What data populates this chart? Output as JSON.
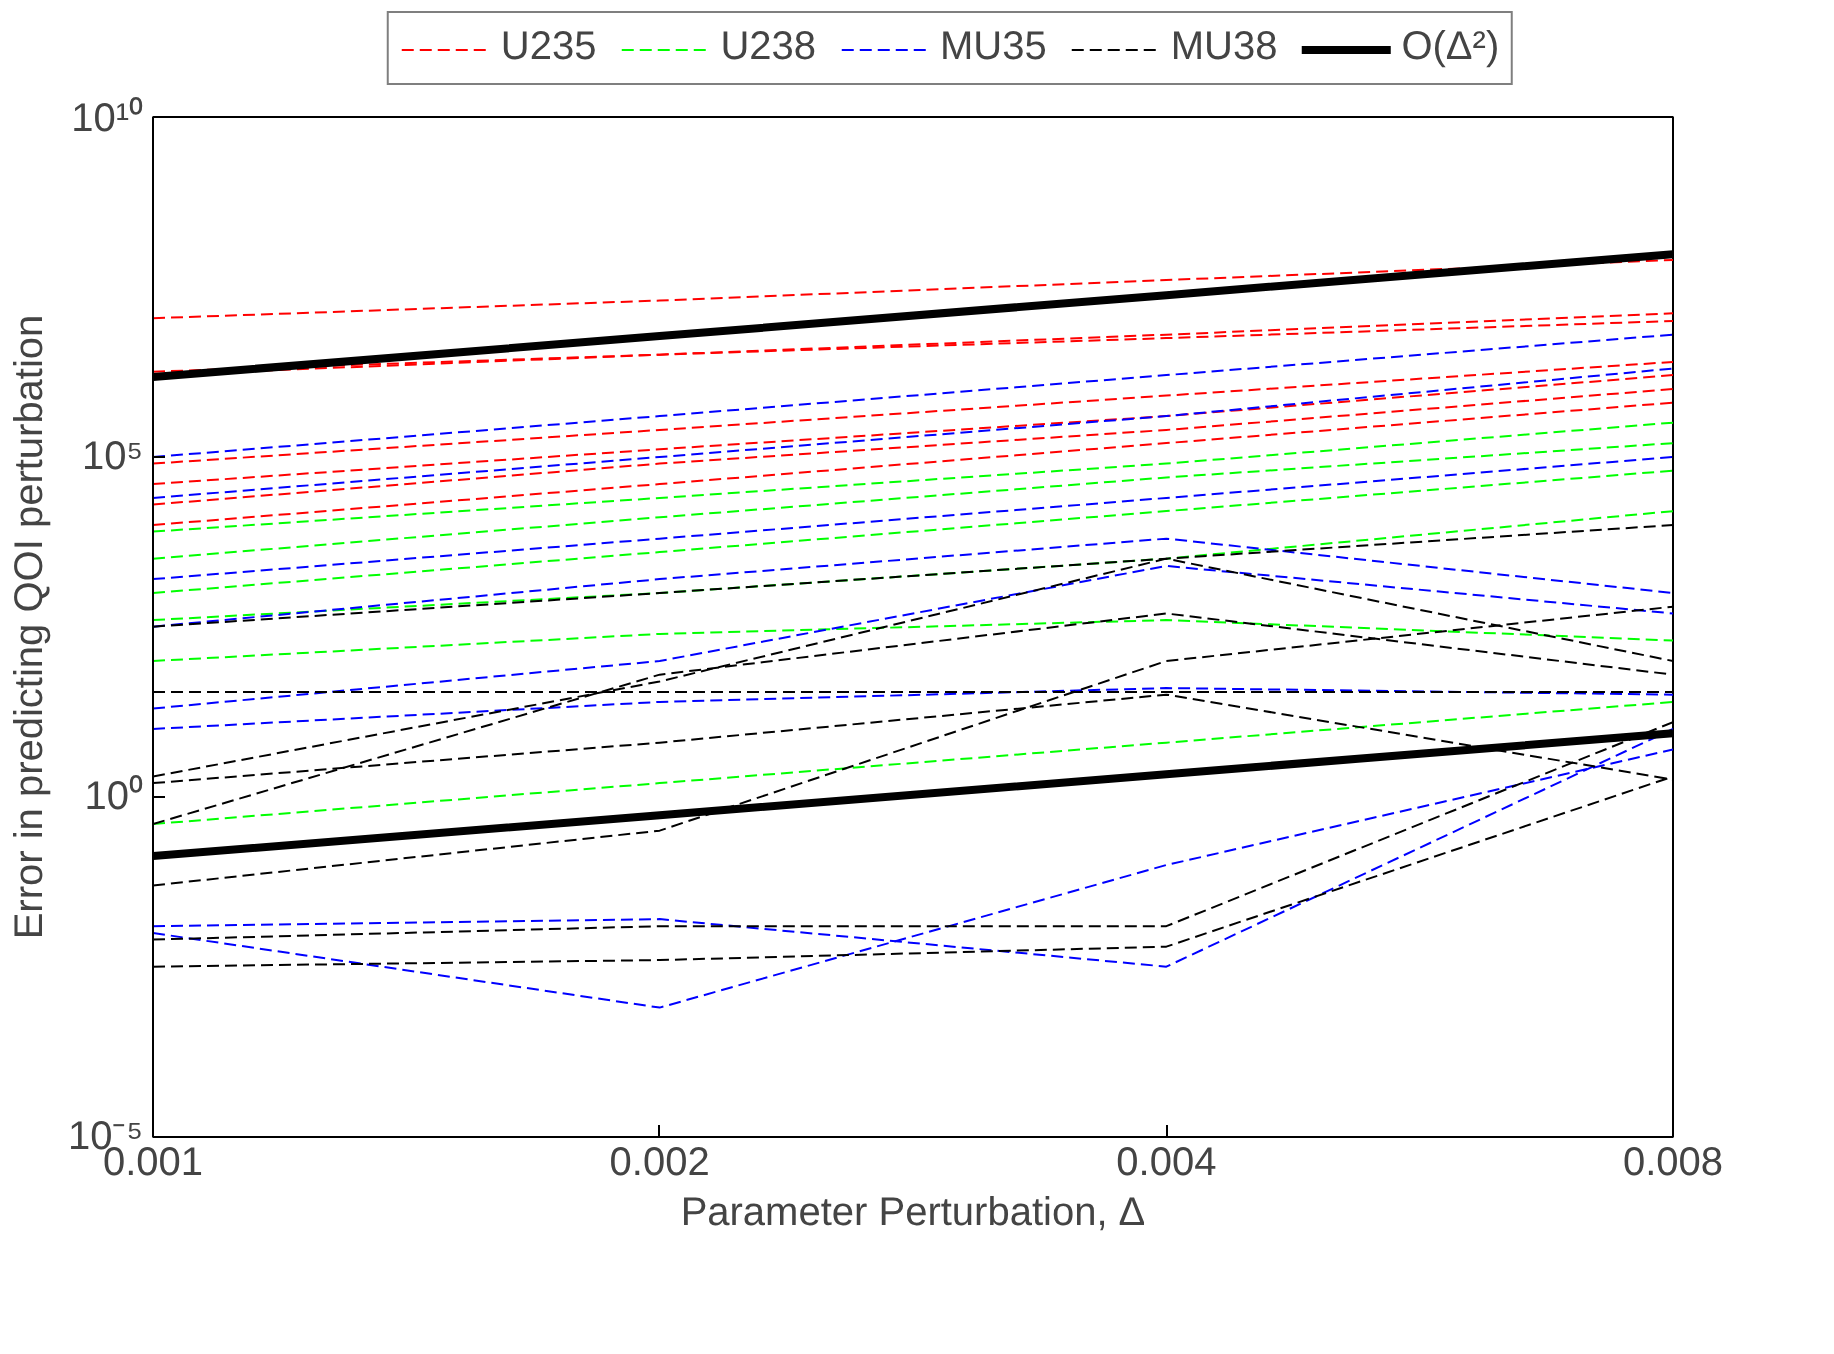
{
  "chart_data": {
    "type": "line",
    "xlabel": "Parameter Perturbation, Δ",
    "ylabel": "Error in predicting QOI perturbation",
    "x": [
      0.001,
      0.002,
      0.004,
      0.008
    ],
    "log": "xy",
    "xlim": [
      0.001,
      0.008
    ],
    "xticks": [
      0.001,
      0.002,
      0.004,
      0.008
    ],
    "ylim": [
      1e-05,
      10000000000.0
    ],
    "yticks": [
      {
        "value": 1e-05,
        "label": "10⁻⁵"
      },
      {
        "value": 1,
        "label": "10⁰"
      },
      {
        "value": 100000.0,
        "label": "10⁵"
      },
      {
        "value": 10000000000.0,
        "label": "10¹⁰"
      }
    ],
    "grid": false,
    "legend": "top",
    "line_style": "dashed",
    "series": [
      {
        "name": "U235",
        "color": "#ff0000",
        "values": [
          11000000.0,
          20000000.0,
          40000000.0,
          79000000.0
        ]
      },
      {
        "color": "#ff0000",
        "values": [
          1600000.0,
          3200000.0,
          6300000.0,
          13000000.0
        ]
      },
      {
        "color": "#ff0000",
        "values": [
          1800000.0,
          3200000.0,
          5600000.0,
          10000000.0
        ]
      },
      {
        "color": "#ff0000",
        "values": [
          80000.0,
          250000.0,
          800000.0,
          2500000.0
        ]
      },
      {
        "color": "#ff0000",
        "values": [
          40000.0,
          130000.0,
          400000.0,
          1600000.0
        ]
      },
      {
        "color": "#ff0000",
        "values": [
          20000.0,
          80000.0,
          250000.0,
          1000000.0
        ]
      },
      {
        "color": "#ff0000",
        "values": [
          10000.0,
          40000.0,
          160000.0,
          630000.0
        ]
      },
      {
        "name": "U238",
        "color": "#00ff00",
        "values": [
          8000.0,
          25000.0,
          80000.0,
          320000.0
        ]
      },
      {
        "color": "#00ff00",
        "values": [
          3200.0,
          13000.0,
          50000.0,
          160000.0
        ]
      },
      {
        "color": "#00ff00",
        "values": [
          1000.0,
          4000.0,
          16000.0,
          63000.0
        ]
      },
      {
        "color": "#00ff00",
        "values": [
          400,
          1000,
          3200,
          16000.0
        ]
      },
      {
        "color": "#00ff00",
        "values": [
          100,
          250,
          400,
          200
        ]
      },
      {
        "color": "#00ff00",
        "values": [
          0.4,
          1.6,
          6.3,
          25
        ]
      },
      {
        "name": "MU35",
        "color": "#0000ff",
        "values": [
          100000.0,
          400000.0,
          1600000.0,
          6300000.0
        ]
      },
      {
        "color": "#0000ff",
        "values": [
          25000.0,
          100000.0,
          400000.0,
          2000000.0
        ]
      },
      {
        "color": "#0000ff",
        "values": [
          1600.0,
          6300.0,
          25000.0,
          100000.0
        ]
      },
      {
        "color": "#0000ff",
        "values": [
          320,
          1600,
          6300,
          1000
        ]
      },
      {
        "color": "#0000ff",
        "values": [
          0.01,
          0.0008,
          0.1,
          5
        ]
      },
      {
        "color": "#0000ff",
        "values": [
          0.0126,
          0.016,
          0.0032,
          10
        ]
      },
      {
        "color": "#0000ff",
        "values": [
          20,
          100,
          2500,
          500
        ]
      },
      {
        "color": "#0000ff",
        "values": [
          10,
          25,
          40,
          32
        ]
      },
      {
        "name": "MU38",
        "color": "#000000",
        "values": [
          35,
          35,
          35,
          35
        ]
      },
      {
        "color": "#000000",
        "values": [
          2,
          50,
          3200,
          100
        ]
      },
      {
        "color": "#000000",
        "values": [
          0.4,
          63,
          500,
          63
        ]
      },
      {
        "color": "#000000",
        "values": [
          0.05,
          0.32,
          100,
          630
        ]
      },
      {
        "color": "#000000",
        "values": [
          0.008,
          0.0126,
          0.0126,
          12.6
        ]
      },
      {
        "color": "#000000",
        "values": [
          0.0032,
          0.004,
          0.0063,
          2
        ]
      },
      {
        "color": "#000000",
        "values": [
          1.6,
          6.3,
          32,
          1.8
        ]
      },
      {
        "color": "#000000",
        "values": [
          320,
          1000,
          3200,
          10000.0
        ]
      },
      {
        "name": "O(Δ²)",
        "color": "#000000",
        "line_style": "solid",
        "values": [
          1500000.0,
          6000000.0,
          24000000.0,
          96000000.0
        ]
      },
      {
        "color": "#000000",
        "line_style": "solid",
        "values": [
          0.135,
          0.54,
          2.16,
          8.64
        ]
      }
    ]
  }
}
